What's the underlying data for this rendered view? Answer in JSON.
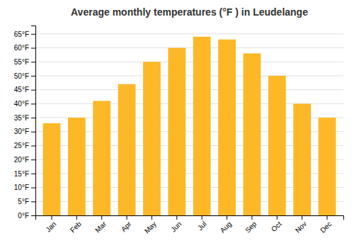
{
  "chart_data": {
    "type": "bar",
    "title": "Average monthly temperatures (°F ) in Leudelange",
    "categories": [
      "Jan",
      "Feb",
      "Mar",
      "Apr",
      "May",
      "Jun",
      "Jul",
      "Aug",
      "Sep",
      "Oct",
      "Nov",
      "Dec"
    ],
    "values": [
      33,
      35,
      41,
      47,
      55,
      60,
      64,
      63,
      58,
      50,
      40,
      35
    ],
    "color": "#FDB827",
    "ylim": [
      0,
      68
    ],
    "yticks": [
      {
        "value": 0,
        "label": "0°F"
      },
      {
        "value": 5,
        "label": "5°F"
      },
      {
        "value": 10,
        "label": "10°F"
      },
      {
        "value": 15,
        "label": "15°F"
      },
      {
        "value": 20,
        "label": "20°F"
      },
      {
        "value": 25,
        "label": "25°F"
      },
      {
        "value": 30,
        "label": "30°F"
      },
      {
        "value": 35,
        "label": "35°F"
      },
      {
        "value": 40,
        "label": "40°F"
      },
      {
        "value": 45,
        "label": "45°F"
      },
      {
        "value": 50,
        "label": "50°F"
      },
      {
        "value": 55,
        "label": "55°F"
      },
      {
        "value": 60,
        "label": "60°F"
      },
      {
        "value": 65,
        "label": "65°F"
      }
    ],
    "grid": true
  }
}
